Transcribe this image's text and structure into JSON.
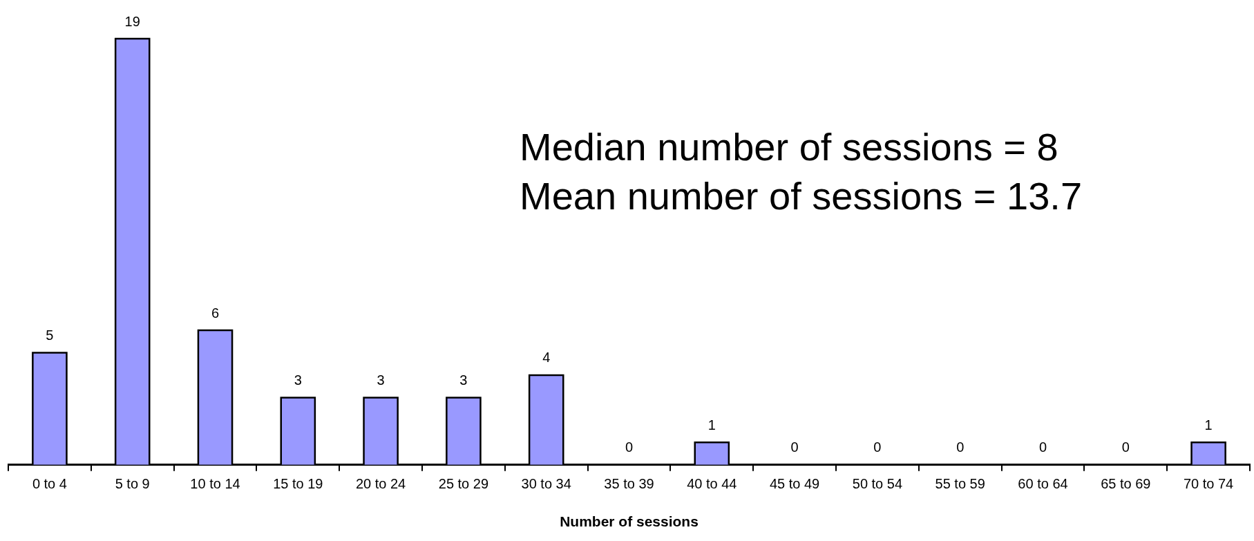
{
  "chart_data": {
    "type": "bar",
    "xlabel": "Number of sessions",
    "categories": [
      "0 to 4",
      "5 to 9",
      "10 to 14",
      "15 to 19",
      "20 to 24",
      "25 to 29",
      "30 to 34",
      "35 to 39",
      "40 to 44",
      "45 to 49",
      "50 to 54",
      "55 to 59",
      "60 to 64",
      "65 to 69",
      "70 to 74"
    ],
    "values": [
      5,
      19,
      6,
      3,
      3,
      3,
      4,
      0,
      1,
      0,
      0,
      0,
      0,
      0,
      1
    ],
    "color": "#9999ff",
    "data_labels": true,
    "legend": false,
    "grid": false,
    "annotations": [
      "Median number of sessions = 8",
      "Mean number of sessions = 13.7"
    ]
  }
}
